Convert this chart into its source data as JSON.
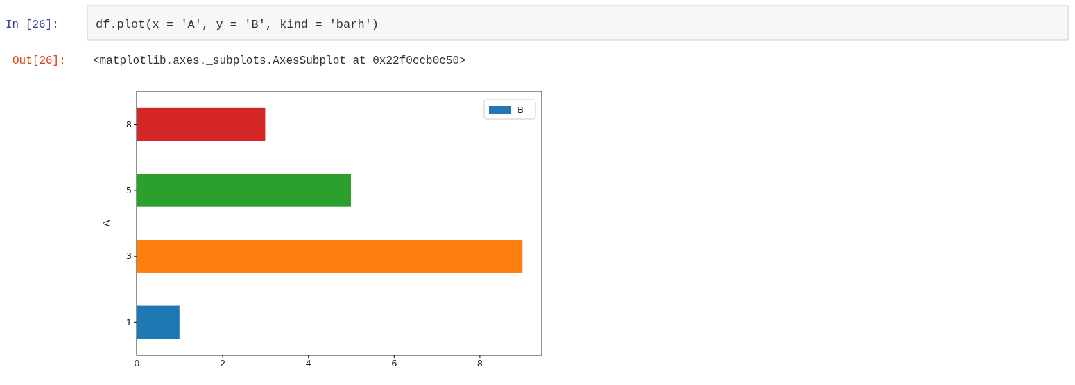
{
  "chart_data": {
    "type": "bar",
    "orientation": "horizontal",
    "ylabel": "A",
    "annotations": [
      "In [26]:",
      "df.plot(x = 'A', y = 'B', kind = 'barh')",
      "Out[26]:",
      "<matplotlib.axes._subplots.AxesSubplot at 0x22f0ccb0c50>"
    ],
    "categories": [
      "8",
      "5",
      "3",
      "1"
    ],
    "series": [
      {
        "name": "B",
        "color": "#1f77b4",
        "colors": [
          "#d62728",
          "#2ca02c",
          "#ff7f0e",
          "#1f77b4"
        ],
        "values": [
          3,
          5,
          9,
          1
        ]
      }
    ],
    "xlim": [
      0,
      9.45
    ],
    "xticks": [
      0,
      2,
      4,
      6,
      8
    ],
    "legend": "top right",
    "grid": false
  }
}
